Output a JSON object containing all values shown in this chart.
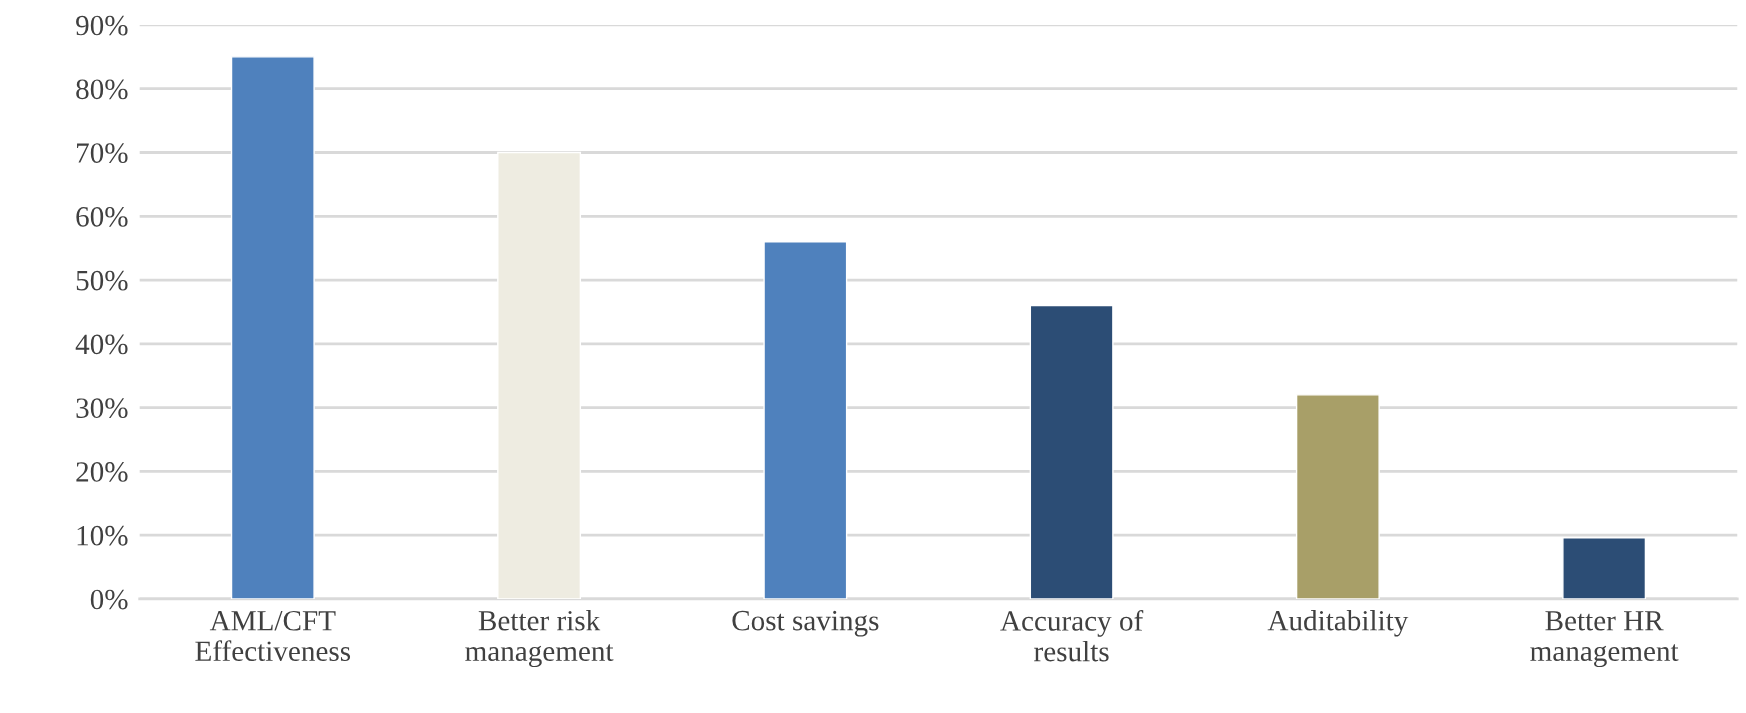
{
  "chart_data": {
    "type": "bar",
    "categories": [
      "AML/CFT\nEffectiveness",
      "Better risk\nmanagement",
      "Cost savings",
      "Accuracy of\nresults",
      "Auditability",
      "Better HR\nmanagement"
    ],
    "values": [
      85,
      70,
      56,
      46,
      32,
      9.6
    ],
    "colors": [
      "#4f81bd",
      "#eeece1",
      "#4f81bd",
      "#2c4d75",
      "#a89f68",
      "#2c4d75"
    ],
    "ylim": [
      0,
      90
    ],
    "yticks": [
      {
        "value": 0,
        "label": "0%"
      },
      {
        "value": 10,
        "label": "10%"
      },
      {
        "value": 20,
        "label": "20%"
      },
      {
        "value": 30,
        "label": "30%"
      },
      {
        "value": 40,
        "label": "40%"
      },
      {
        "value": 50,
        "label": "50%"
      },
      {
        "value": 60,
        "label": "60%"
      },
      {
        "value": 70,
        "label": "70%"
      },
      {
        "value": 80,
        "label": "80%"
      },
      {
        "value": 90,
        "label": "90%"
      }
    ],
    "grid": "y",
    "legend": false
  }
}
